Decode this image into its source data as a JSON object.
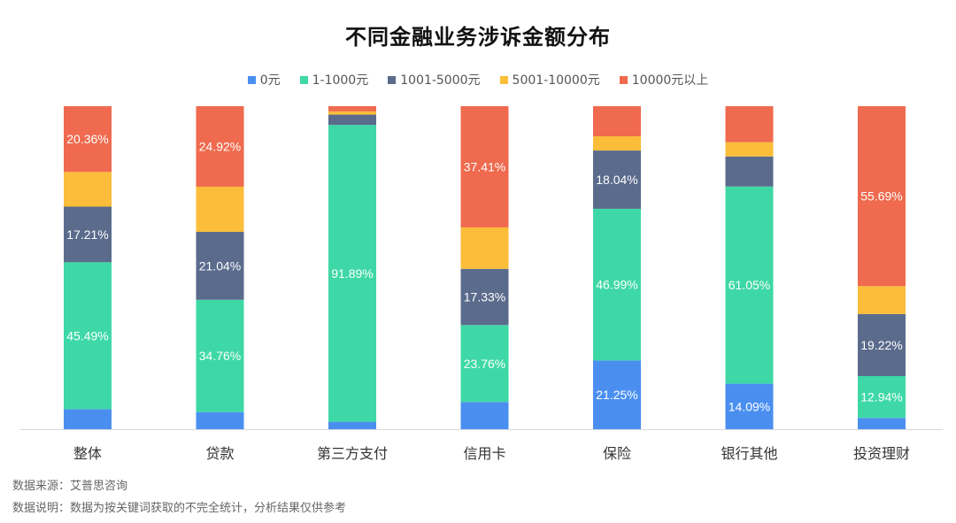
{
  "chart_data": {
    "type": "bar",
    "stacked": true,
    "title": "不同金融业务涉诉金额分布",
    "categories": [
      "整体",
      "贷款",
      "第三方支付",
      "信用卡",
      "保险",
      "银行其他",
      "投资理财"
    ],
    "ylim": [
      0,
      100
    ],
    "legend_position": "top",
    "grid": false,
    "series": [
      {
        "name": "0元",
        "color": "#4a8ff0",
        "values": [
          6.2,
          5.3,
          2.3,
          8.4,
          21.25,
          14.09,
          3.5
        ],
        "labels": [
          "",
          "",
          "",
          "",
          "21.25%",
          "14.09%",
          ""
        ]
      },
      {
        "name": "1-1000元",
        "color": "#3ed8a6",
        "values": [
          45.49,
          34.76,
          91.89,
          23.76,
          46.99,
          61.05,
          12.94
        ],
        "labels": [
          "45.49%",
          "34.76%",
          "91.89%",
          "23.76%",
          "46.99%",
          "61.05%",
          "12.94%"
        ]
      },
      {
        "name": "1001-5000元",
        "color": "#5a6b8c",
        "values": [
          17.21,
          21.04,
          3.2,
          17.33,
          18.04,
          9.3,
          19.22
        ],
        "labels": [
          "17.21%",
          "21.04%",
          "",
          "17.33%",
          "18.04%",
          "",
          "19.22%"
        ]
      },
      {
        "name": "5001-10000元",
        "color": "#fbbd3a",
        "values": [
          10.74,
          13.98,
          1.0,
          12.8,
          4.4,
          4.4,
          8.65
        ],
        "labels": [
          "",
          "",
          "",
          "",
          "",
          "",
          ""
        ]
      },
      {
        "name": "10000元以上",
        "color": "#ef6a4e",
        "values": [
          20.36,
          24.92,
          1.61,
          37.41,
          9.32,
          11.16,
          55.69
        ],
        "labels": [
          "20.36%",
          "24.92%",
          "",
          "37.41%",
          "",
          "",
          "55.69%"
        ]
      }
    ]
  },
  "notes": {
    "source": "数据来源：艾普思咨询",
    "disclaimer": "数据说明：数据为按关键词获取的不完全统计，分析结果仅供参考"
  },
  "colors": {
    "axis": "#d9d9d9",
    "label_text": "#ffffff",
    "category_text": "#333333"
  }
}
